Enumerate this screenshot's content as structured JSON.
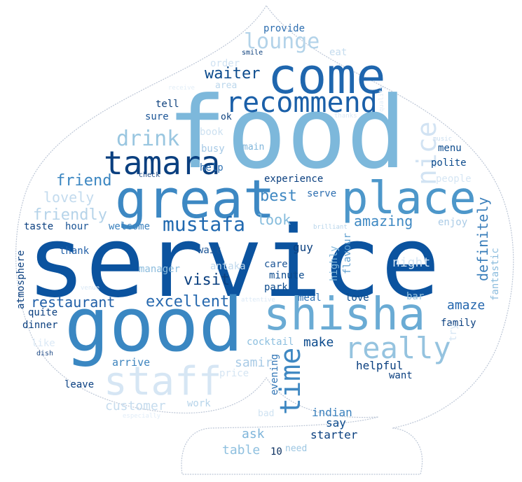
{
  "words": [
    {
      "text": "service",
      "color": "#0b539f"
    },
    {
      "text": "food",
      "color": "#7db8db"
    },
    {
      "text": "good",
      "color": "#3a87c2"
    },
    {
      "text": "great",
      "color": "#3d88c3"
    },
    {
      "text": "come",
      "color": "#1f66ae"
    },
    {
      "text": "place",
      "color": "#4d97ca"
    },
    {
      "text": "shisha",
      "color": "#6aabd4"
    },
    {
      "text": "staff",
      "color": "#d6e6f4"
    },
    {
      "text": "tamara",
      "color": "#0a3f7f"
    },
    {
      "text": "recommend",
      "color": "#1a5fa8"
    },
    {
      "text": "time",
      "color": "#3f88c2"
    },
    {
      "text": "really",
      "color": "#95c3df"
    },
    {
      "text": "nice",
      "color": "#d2e3f3"
    },
    {
      "text": "drink",
      "color": "#99c6e0"
    },
    {
      "text": "mustafa",
      "color": "#2069b0"
    },
    {
      "text": "lounge",
      "color": "#b3d3e9"
    },
    {
      "text": "waiter",
      "color": "#0b4a8c"
    },
    {
      "text": "friend",
      "color": "#3b86c1"
    },
    {
      "text": "best",
      "color": "#3f88c2"
    },
    {
      "text": "friendly",
      "color": "#b5d3e9"
    },
    {
      "text": "look",
      "color": "#84bbdc"
    },
    {
      "text": "lovely",
      "color": "#c3dbee"
    },
    {
      "text": "amazing",
      "color": "#3f89c3"
    },
    {
      "text": "excellent",
      "color": "#2668ae"
    },
    {
      "text": "visit",
      "color": "#0a3f7f"
    },
    {
      "text": "restaurant",
      "color": "#1f5ea6"
    },
    {
      "text": "definitely",
      "color": "#3b7fbb"
    },
    {
      "text": "amaze",
      "color": "#2366ad"
    },
    {
      "text": "make",
      "color": "#0b4a8c"
    },
    {
      "text": "helpful",
      "color": "#0a3f7f"
    },
    {
      "text": "arrive",
      "color": "#3c83bd"
    },
    {
      "text": "leave",
      "color": "#0a4082"
    },
    {
      "text": "customer",
      "color": "#c6dcee"
    },
    {
      "text": "price",
      "color": "#d5e5f3"
    },
    {
      "text": "samir",
      "color": "#a9cbe6"
    },
    {
      "text": "cocktail",
      "color": "#8dbfdf"
    },
    {
      "text": "evening",
      "color": "#2f74b5"
    },
    {
      "text": "work",
      "color": "#b6d4ea"
    },
    {
      "text": "indian",
      "color": "#3b81bd"
    },
    {
      "text": "say",
      "color": "#0b4a8c"
    },
    {
      "text": "ask",
      "color": "#7fb5da"
    },
    {
      "text": "table",
      "color": "#8fc0df"
    },
    {
      "text": "starter",
      "color": "#0a3f7f"
    },
    {
      "text": "need",
      "color": "#9cc6e2"
    },
    {
      "text": "10",
      "color": "#0a2f5f"
    },
    {
      "text": "want",
      "color": "#0a3f7f"
    },
    {
      "text": "bad",
      "color": "#d0e3f2"
    },
    {
      "text": "especially",
      "color": "#e1edf8"
    },
    {
      "text": "provide",
      "color": "#2d6eb0"
    },
    {
      "text": "eat",
      "color": "#c5dcee"
    },
    {
      "text": "smile",
      "color": "#0b3f7c"
    },
    {
      "text": "order",
      "color": "#d1e3f3"
    },
    {
      "text": "area",
      "color": "#bcd7ec"
    },
    {
      "text": "receive",
      "color": "#e3eef8"
    },
    {
      "text": "tell",
      "color": "#0b3f7c"
    },
    {
      "text": "sure",
      "color": "#1c5596"
    },
    {
      "text": "ok",
      "color": "#0b3f7c"
    },
    {
      "text": "book",
      "color": "#cde1f1"
    },
    {
      "text": "busy",
      "color": "#a7cae6"
    },
    {
      "text": "main",
      "color": "#7fb5da"
    },
    {
      "text": "help",
      "color": "#2f72b4"
    },
    {
      "text": "check",
      "color": "#234d87"
    },
    {
      "text": "experience",
      "color": "#0a3f7f"
    },
    {
      "text": "serve",
      "color": "#2d6eb0"
    },
    {
      "text": "thanks",
      "color": "#dbe9f6"
    },
    {
      "text": "quality",
      "color": "#e1edf8"
    },
    {
      "text": "music",
      "color": "#c7dcef"
    },
    {
      "text": "menu",
      "color": "#0b4a8c"
    },
    {
      "text": "polite",
      "color": "#0b4a8c"
    },
    {
      "text": "people",
      "color": "#d6e6f4"
    },
    {
      "text": "enjoy",
      "color": "#aacbe6"
    },
    {
      "text": "night",
      "color": "#d6e6f4"
    },
    {
      "text": "taste",
      "color": "#0a3f7f"
    },
    {
      "text": "hour",
      "color": "#1c5596"
    },
    {
      "text": "welcome",
      "color": "#3b81bd"
    },
    {
      "text": "thank",
      "color": "#1f5ea6"
    },
    {
      "text": "wait",
      "color": "#1c5596"
    },
    {
      "text": "manager",
      "color": "#8bbcdd"
    },
    {
      "text": "antaka",
      "color": "#c0d9ed"
    },
    {
      "text": "care",
      "color": "#1c5596"
    },
    {
      "text": "minute",
      "color": "#0b4a8c"
    },
    {
      "text": "guy",
      "color": "#0a3f7f"
    },
    {
      "text": "park",
      "color": "#0b4a8c"
    },
    {
      "text": "brilliant",
      "color": "#b7d4ea"
    },
    {
      "text": "highly",
      "color": "#82b8db"
    },
    {
      "text": "flavour",
      "color": "#5f9fcf"
    },
    {
      "text": "atmosphere",
      "color": "#0a3f7f"
    },
    {
      "text": "quite",
      "color": "#0a3f7f"
    },
    {
      "text": "dinner",
      "color": "#0a3f7f"
    },
    {
      "text": "like",
      "color": "#dbe9f6"
    },
    {
      "text": "dish",
      "color": "#234d87"
    },
    {
      "text": "venue",
      "color": "#dbe9f6"
    },
    {
      "text": "attentive",
      "color": "#dbe9f6"
    },
    {
      "text": "meal",
      "color": "#2f72b4"
    },
    {
      "text": "love",
      "color": "#0b4a8c"
    },
    {
      "text": "bar",
      "color": "#99c6e0"
    },
    {
      "text": "family",
      "color": "#0a3f7f"
    },
    {
      "text": "fantastic",
      "color": "#8bbcdd"
    },
    {
      "text": "try",
      "color": "#d6e6f4"
    }
  ]
}
